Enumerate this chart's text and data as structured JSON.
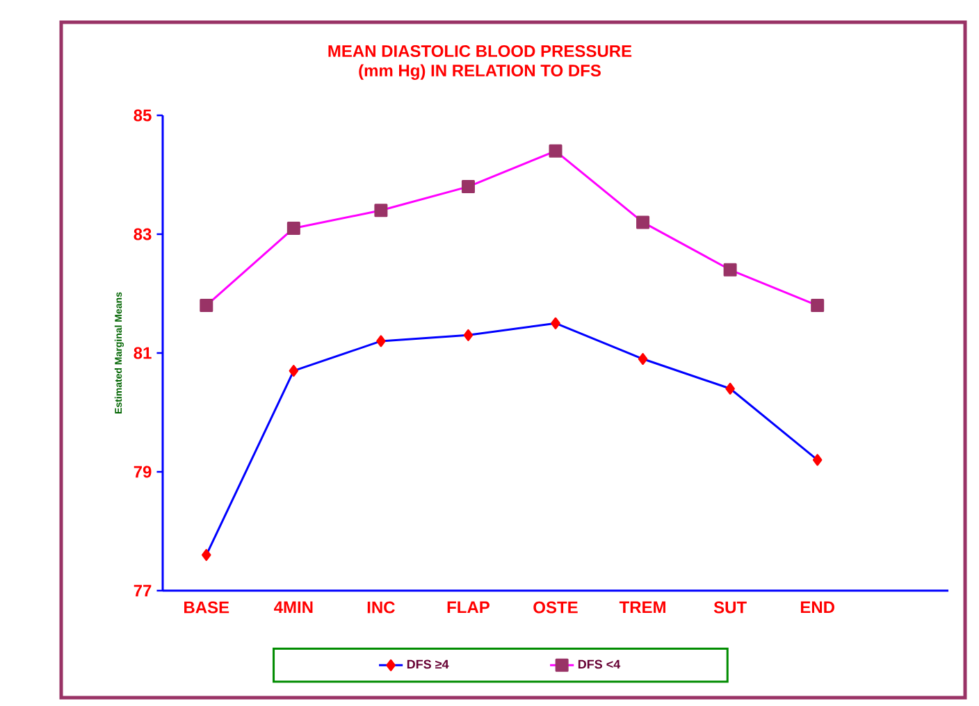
{
  "chart_data": {
    "type": "line",
    "title": "MEAN DIASTOLIC  BLOOD PRESSURE\n(mm Hg) IN RELATION  TO DFS",
    "ylabel": "Estimated Marginal Means",
    "categories": [
      "BASE",
      "4MIN",
      "INC",
      "FLAP",
      "OSTE",
      "TREM",
      "SUT",
      "END",
      null
    ],
    "series": [
      {
        "name": "DFS  ≥4",
        "color": "#0000ff",
        "marker": "diamond",
        "values": [
          77.6,
          80.7,
          81.2,
          81.3,
          81.5,
          80.9,
          80.4,
          79.2,
          null
        ]
      },
      {
        "name": "DFS <4",
        "color": "#ff00ff",
        "marker": "square",
        "values": [
          81.8,
          83.1,
          83.4,
          83.8,
          84.4,
          83.2,
          82.4,
          81.8,
          null
        ]
      }
    ],
    "ylim": [
      77,
      85
    ],
    "yticks": [
      77,
      79,
      81,
      83,
      85
    ],
    "grid": false,
    "legend": "bottom"
  }
}
